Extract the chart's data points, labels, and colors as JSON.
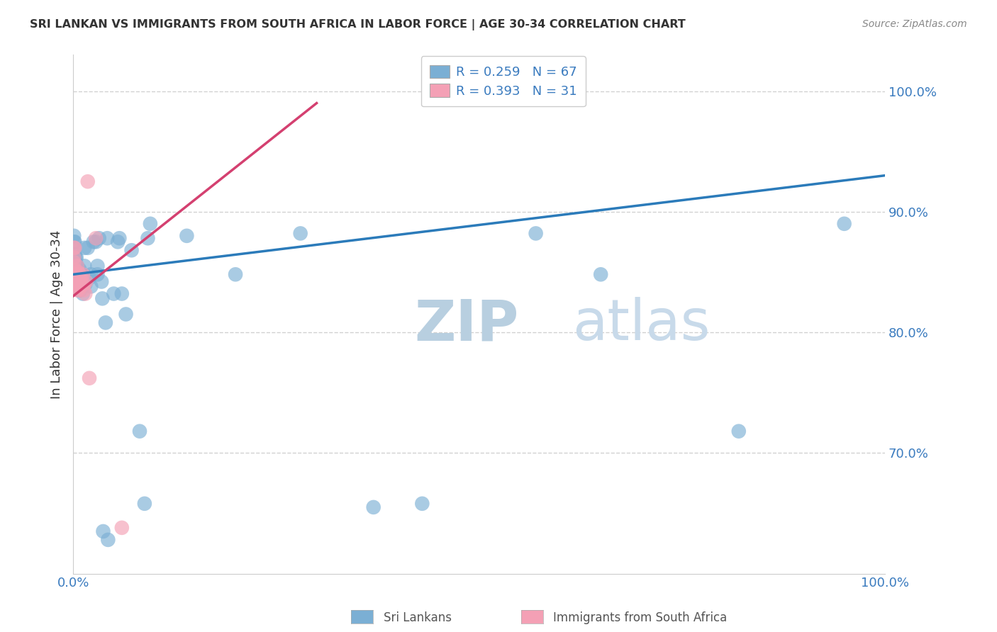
{
  "title": "SRI LANKAN VS IMMIGRANTS FROM SOUTH AFRICA IN LABOR FORCE | AGE 30-34 CORRELATION CHART",
  "source": "Source: ZipAtlas.com",
  "legend_label1": "Sri Lankans",
  "legend_label2": "Immigrants from South Africa",
  "R1": "0.259",
  "N1": "67",
  "R2": "0.393",
  "N2": "31",
  "ylabel": "In Labor Force | Age 30-34",
  "blue_color": "#7bafd4",
  "pink_color": "#f4a0b5",
  "blue_line_color": "#2b7bba",
  "pink_line_color": "#d44070",
  "text_blue": "#3a7bbf",
  "watermark_color": "#ccdded",
  "blue_x": [
    0.001,
    0.001,
    0.001,
    0.001,
    0.002,
    0.002,
    0.002,
    0.002,
    0.003,
    0.003,
    0.003,
    0.004,
    0.004,
    0.004,
    0.005,
    0.005,
    0.006,
    0.006,
    0.007,
    0.007,
    0.008,
    0.008,
    0.008,
    0.009,
    0.009,
    0.01,
    0.01,
    0.011,
    0.012,
    0.013,
    0.014,
    0.014,
    0.015,
    0.018,
    0.02,
    0.022,
    0.022,
    0.025,
    0.028,
    0.03,
    0.03,
    0.032,
    0.035,
    0.036,
    0.037,
    0.04,
    0.042,
    0.043,
    0.05,
    0.055,
    0.057,
    0.06,
    0.065,
    0.072,
    0.082,
    0.088,
    0.092,
    0.095,
    0.14,
    0.2,
    0.28,
    0.37,
    0.43,
    0.57,
    0.65,
    0.82,
    0.95
  ],
  "blue_y": [
    0.86,
    0.87,
    0.875,
    0.88,
    0.855,
    0.86,
    0.865,
    0.875,
    0.85,
    0.858,
    0.862,
    0.848,
    0.855,
    0.862,
    0.845,
    0.855,
    0.84,
    0.852,
    0.835,
    0.848,
    0.838,
    0.845,
    0.852,
    0.835,
    0.845,
    0.838,
    0.848,
    0.845,
    0.832,
    0.845,
    0.855,
    0.87,
    0.84,
    0.87,
    0.845,
    0.838,
    0.848,
    0.875,
    0.875,
    0.848,
    0.855,
    0.878,
    0.842,
    0.828,
    0.635,
    0.808,
    0.878,
    0.628,
    0.832,
    0.875,
    0.878,
    0.832,
    0.815,
    0.868,
    0.718,
    0.658,
    0.878,
    0.89,
    0.88,
    0.848,
    0.882,
    0.655,
    0.658,
    0.882,
    0.848,
    0.718,
    0.89
  ],
  "pink_x": [
    0.001,
    0.001,
    0.001,
    0.002,
    0.002,
    0.002,
    0.003,
    0.003,
    0.004,
    0.004,
    0.005,
    0.005,
    0.005,
    0.006,
    0.006,
    0.007,
    0.007,
    0.008,
    0.008,
    0.009,
    0.01,
    0.011,
    0.012,
    0.013,
    0.014,
    0.015,
    0.016,
    0.018,
    0.02,
    0.028,
    0.06
  ],
  "pink_y": [
    0.858,
    0.862,
    0.87,
    0.845,
    0.852,
    0.87,
    0.84,
    0.848,
    0.838,
    0.848,
    0.835,
    0.845,
    0.855,
    0.84,
    0.85,
    0.835,
    0.845,
    0.84,
    0.848,
    0.838,
    0.845,
    0.84,
    0.848,
    0.835,
    0.84,
    0.832,
    0.842,
    0.925,
    0.762,
    0.878,
    0.638
  ],
  "blue_line_x0": 0.0,
  "blue_line_y0": 0.848,
  "blue_line_x1": 1.0,
  "blue_line_y1": 0.93,
  "pink_line_x0": 0.0,
  "pink_line_y0": 0.83,
  "pink_line_x1": 0.3,
  "pink_line_y1": 0.99,
  "xlim": [
    0.0,
    1.0
  ],
  "ylim": [
    0.6,
    1.03
  ]
}
